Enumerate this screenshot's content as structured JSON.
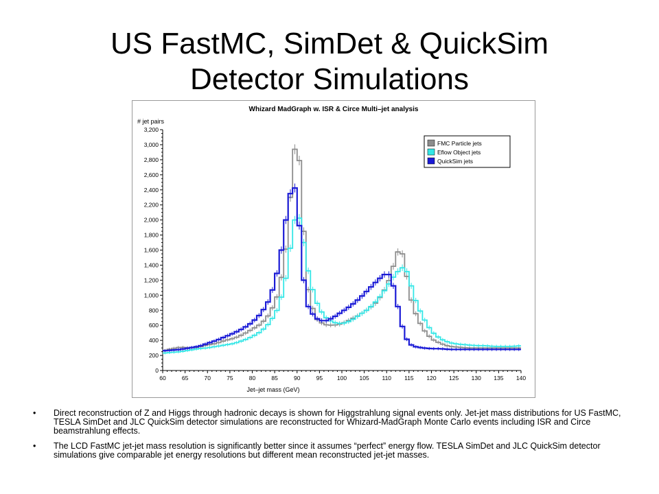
{
  "slide": {
    "title_line1": "US FastMC, SimDet & QuickSim",
    "title_line2": "Detector Simulations",
    "bullet_symbol": "•",
    "bullets": [
      "Direct reconstruction of Z and Higgs through hadronic decays is shown for Higgstrahlung signal events only. Jet-jet mass distributions for US FastMC, TESLA SimDet and JLC QuickSim detector simulations are reconstructed for Whizard-MadGraph Monte Carlo events including ISR and Circe beamstrahlung effects.",
      "The LCD FastMC jet-jet mass resolution is significantly better since it assumes “perfect” energy flow. TESLA SimDet and JLC QuickSim detector simulations give comparable jet energy resolutions but different mean reconstructed jet-jet masses."
    ]
  },
  "chart_data": {
    "type": "line",
    "title": "Whizard MadGraph w. ISR & Circe    Multi–jet analysis",
    "xlabel": "Jet–jet mass (GeV)",
    "ylabel": "# jet pairs",
    "xlim": [
      60,
      140
    ],
    "ylim": [
      0,
      3200
    ],
    "xticks": [
      60,
      65,
      70,
      75,
      80,
      85,
      90,
      95,
      100,
      105,
      110,
      115,
      120,
      125,
      130,
      135,
      140
    ],
    "yticks": [
      0,
      200,
      400,
      600,
      800,
      1000,
      1200,
      1400,
      1600,
      1800,
      2000,
      2200,
      2400,
      2600,
      2800,
      3000,
      3200
    ],
    "ytick_labels": [
      "0",
      "200",
      "400",
      "600",
      "800",
      "1,000",
      "1,200",
      "1,400",
      "1,600",
      "1,800",
      "2,000",
      "2,200",
      "2,400",
      "2,600",
      "2,800",
      "3,000",
      "3,200"
    ],
    "grid": false,
    "legend_position": "top-right",
    "x": [
      60,
      62,
      64,
      66,
      68,
      70,
      72,
      74,
      76,
      78,
      80,
      82,
      84,
      86,
      88,
      89,
      90,
      91,
      92,
      94,
      96,
      98,
      100,
      102,
      104,
      106,
      108,
      110,
      111,
      112,
      113,
      114,
      115,
      116,
      118,
      120,
      122,
      124,
      126,
      128,
      130,
      132,
      134,
      136,
      138,
      140
    ],
    "series": [
      {
        "name": "FMC Particle jets",
        "color": "#8c8c8c",
        "values": [
          260,
          290,
          310,
          300,
          310,
          340,
          360,
          400,
          430,
          480,
          550,
          620,
          760,
          1050,
          1800,
          2800,
          3080,
          2500,
          1200,
          700,
          610,
          600,
          620,
          680,
          740,
          820,
          920,
          1120,
          1270,
          1500,
          1650,
          1450,
          1050,
          820,
          560,
          420,
          360,
          320,
          310,
          300,
          300,
          300,
          300,
          300,
          300,
          300
        ]
      },
      {
        "name": "Eflow Object jets",
        "color": "#33e6e6",
        "values": [
          230,
          240,
          250,
          270,
          290,
          300,
          320,
          340,
          360,
          400,
          450,
          520,
          640,
          850,
          1350,
          1900,
          2100,
          1950,
          1450,
          950,
          720,
          640,
          620,
          660,
          740,
          820,
          940,
          1100,
          1200,
          1280,
          1350,
          1380,
          1250,
          1000,
          720,
          520,
          420,
          370,
          350,
          340,
          330,
          330,
          320,
          320,
          320,
          330
        ]
      },
      {
        "name": "QuickSim jets",
        "color": "#1a1ad6",
        "values": [
          260,
          270,
          280,
          300,
          320,
          360,
          400,
          450,
          500,
          560,
          640,
          760,
          960,
          1400,
          2200,
          2500,
          2350,
          1500,
          900,
          700,
          650,
          700,
          780,
          860,
          960,
          1080,
          1200,
          1300,
          1250,
          1000,
          700,
          470,
          360,
          320,
          300,
          290,
          290,
          280,
          280,
          280,
          280,
          280,
          280,
          280,
          280,
          280
        ]
      }
    ]
  }
}
